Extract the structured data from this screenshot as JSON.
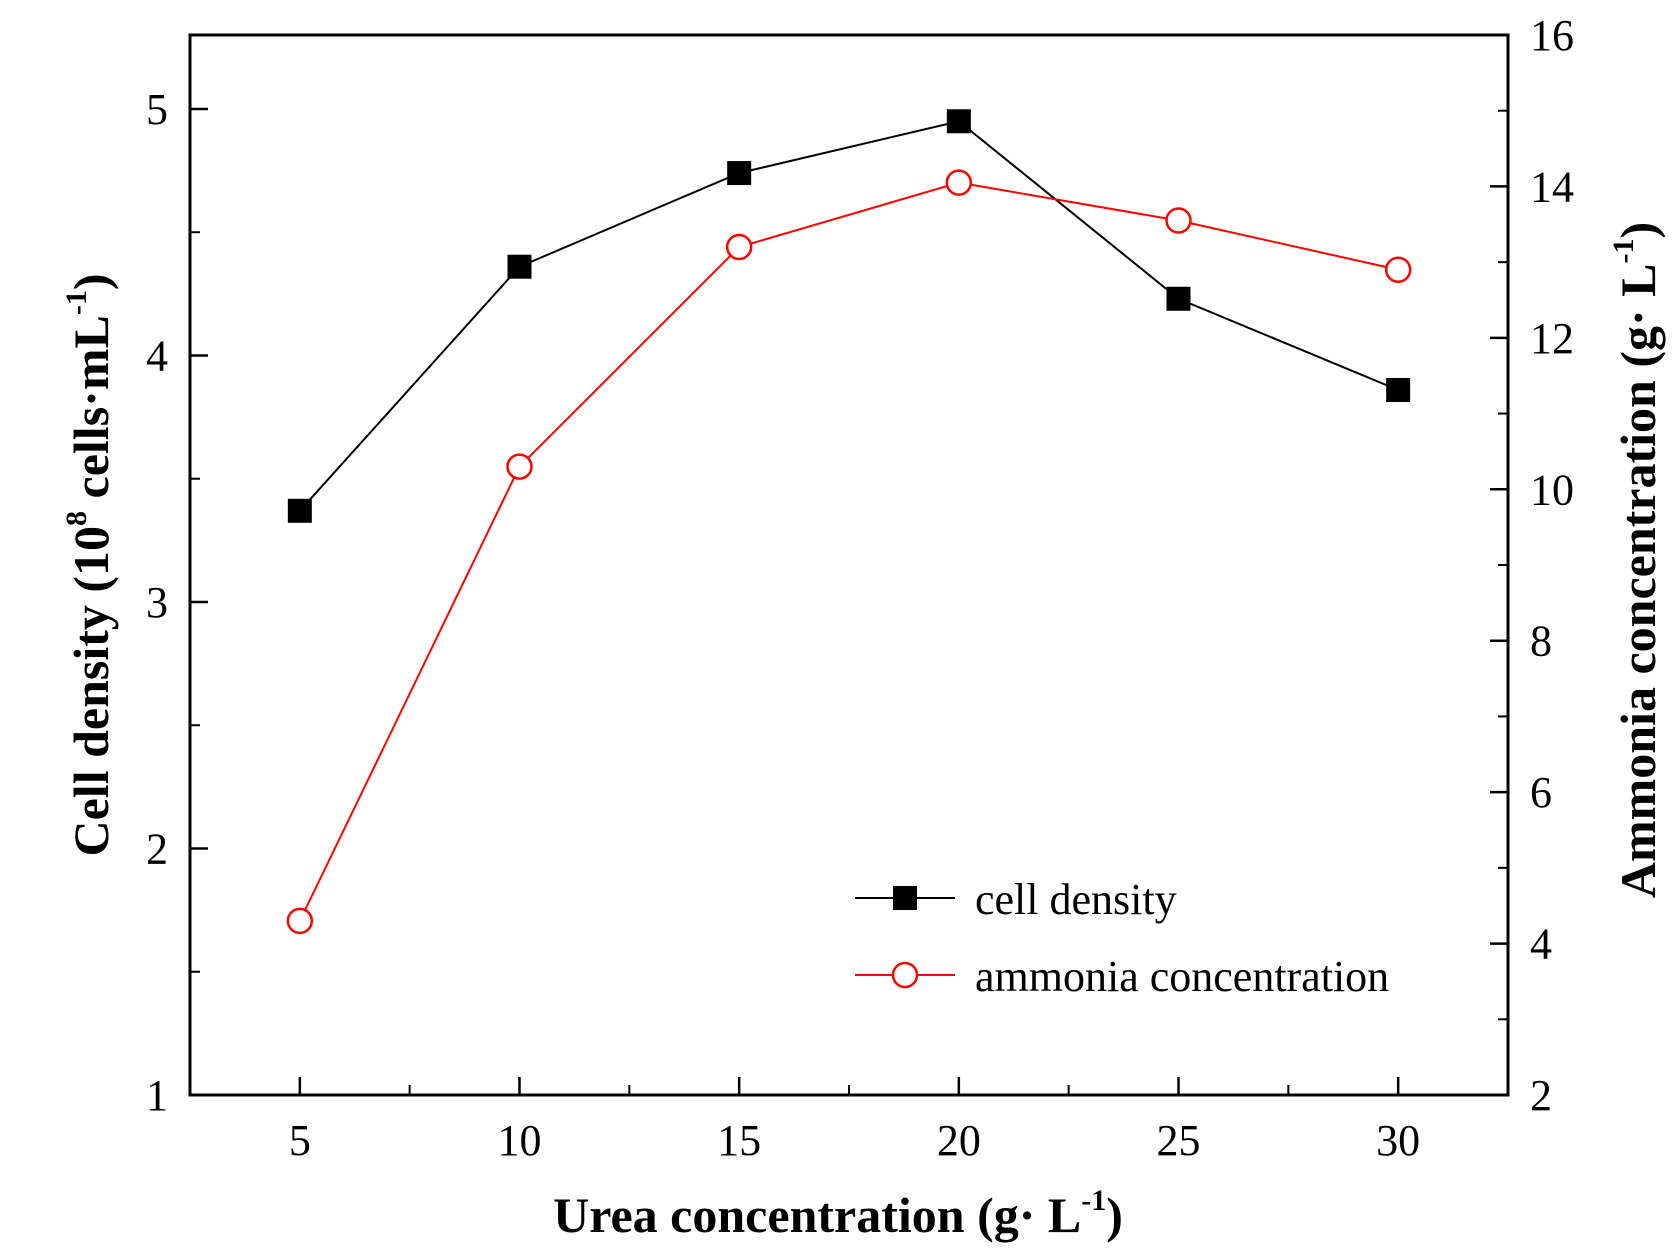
{
  "chart_data": {
    "type": "line",
    "x": [
      5,
      10,
      15,
      20,
      25,
      30
    ],
    "xlabel": {
      "main": "Urea concentration (g· L",
      "sup": "-1",
      "end": ")"
    },
    "ylabel_left": {
      "a": "Cell density (10",
      "sup1": "8",
      "b": " cells·mL",
      "sup2": "-1",
      "c": ")"
    },
    "ylabel_right": {
      "main": "Ammonia concentration (g· L",
      "sup": "-1",
      "end": ")"
    },
    "xlim": [
      2.5,
      32.5
    ],
    "ylim_left": [
      1,
      5.3
    ],
    "ylim_right": [
      2,
      16
    ],
    "x_ticks": [
      5,
      10,
      15,
      20,
      25,
      30
    ],
    "y_left_ticks": [
      1,
      2,
      3,
      4,
      5
    ],
    "y_right_ticks": [
      2,
      4,
      6,
      8,
      10,
      12,
      14,
      16
    ],
    "legend_position": "bottom-right",
    "series": [
      {
        "name": "cell density",
        "axis": "left",
        "marker": "filled-square",
        "color": "#000000",
        "values": [
          3.37,
          4.36,
          4.74,
          4.95,
          4.23,
          3.86
        ]
      },
      {
        "name": "ammonia concentration",
        "axis": "right",
        "marker": "open-circle",
        "color": "#ff0000",
        "values": [
          4.3,
          10.3,
          13.2,
          14.05,
          13.55,
          12.9
        ]
      }
    ]
  }
}
